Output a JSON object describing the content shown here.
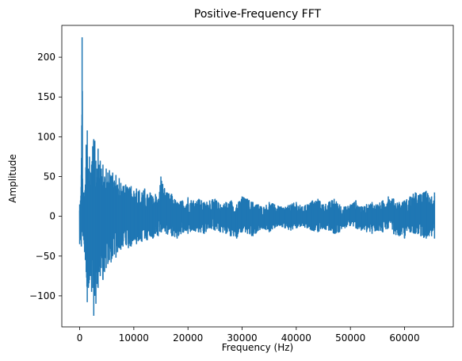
{
  "chart_data": {
    "type": "line",
    "title": "Positive-Frequency FFT",
    "xlabel": "Frequency (Hz)",
    "ylabel": "Amplitude",
    "xlim": [
      -3300,
      69000
    ],
    "ylim": [
      -139,
      240
    ],
    "x_ticks": [
      0,
      10000,
      20000,
      30000,
      40000,
      50000,
      60000
    ],
    "x_tick_labels": [
      "0",
      "10000",
      "20000",
      "30000",
      "40000",
      "50000",
      "60000"
    ],
    "y_ticks": [
      -100,
      -50,
      0,
      50,
      100,
      150,
      200
    ],
    "y_tick_labels": [
      "−100",
      "−50",
      "0",
      "50",
      "100",
      "150",
      "200"
    ],
    "grid": false,
    "legend": "none",
    "series": [
      {
        "color": "#1f77b4",
        "envelope": {
          "x": [
            0,
            150,
            300,
            450,
            600,
            750,
            900,
            1050,
            1200,
            1400,
            1600,
            1800,
            2000,
            2200,
            2400,
            2600,
            2800,
            3000,
            3200,
            3400,
            3600,
            3800,
            4000,
            4300,
            4600,
            4900,
            5200,
            5500,
            5800,
            6100,
            6400,
            6700,
            7000,
            7300,
            7600,
            8000,
            8500,
            9000,
            9500,
            10000,
            10500,
            11000,
            11500,
            12000,
            12500,
            13000,
            13500,
            14000,
            14500,
            15000,
            16000,
            17000,
            18000,
            19000,
            20000,
            21000,
            22000,
            23000,
            24000,
            25000,
            26000,
            27000,
            28000,
            29000,
            30000,
            31000,
            32000,
            33000,
            34000,
            35000,
            36000,
            37000,
            38000,
            39000,
            40000,
            41000,
            42000,
            43000,
            44000,
            45000,
            46000,
            47000,
            48000,
            49000,
            50000,
            51000,
            52000,
            53000,
            54000,
            55000,
            56000,
            57000,
            58000,
            59000,
            60000,
            61000,
            62000,
            63000,
            64000,
            65000,
            65536
          ],
          "max": [
            15,
            20,
            52,
            225,
            20,
            30,
            25,
            40,
            90,
            108,
            60,
            75,
            55,
            65,
            88,
            97,
            95,
            70,
            60,
            85,
            65,
            70,
            60,
            65,
            50,
            60,
            55,
            58,
            50,
            55,
            45,
            52,
            40,
            48,
            42,
            38,
            40,
            35,
            38,
            32,
            35,
            33,
            30,
            35,
            28,
            30,
            25,
            28,
            22,
            50,
            30,
            28,
            18,
            20,
            24,
            20,
            22,
            18,
            20,
            22,
            15,
            18,
            20,
            15,
            25,
            22,
            18,
            15,
            12,
            18,
            15,
            12,
            12,
            15,
            18,
            12,
            15,
            20,
            22,
            15,
            18,
            22,
            15,
            12,
            15,
            20,
            12,
            15,
            18,
            15,
            20,
            25,
            22,
            18,
            20,
            25,
            30,
            28,
            32,
            25,
            30
          ],
          "min": [
            -35,
            -30,
            -38,
            -20,
            -25,
            -30,
            -45,
            -55,
            -70,
            -108,
            -90,
            -80,
            -75,
            -95,
            -90,
            -125,
            -100,
            -110,
            -85,
            -90,
            -70,
            -75,
            -65,
            -80,
            -70,
            -65,
            -60,
            -55,
            -58,
            -50,
            -48,
            -52,
            -45,
            -40,
            -42,
            -38,
            -35,
            -40,
            -38,
            -30,
            -35,
            -30,
            -32,
            -28,
            -30,
            -25,
            -28,
            -22,
            -25,
            -20,
            -22,
            -25,
            -28,
            -20,
            -22,
            -18,
            -20,
            -22,
            -15,
            -18,
            -20,
            -22,
            -25,
            -28,
            -20,
            -22,
            -25,
            -18,
            -15,
            -20,
            -15,
            -12,
            -15,
            -18,
            -15,
            -12,
            -15,
            -18,
            -20,
            -15,
            -18,
            -22,
            -20,
            -15,
            -12,
            -15,
            -18,
            -20,
            -22,
            -18,
            -20,
            -15,
            -22,
            -25,
            -28,
            -20,
            -22,
            -25,
            -28,
            -25,
            -28
          ]
        }
      }
    ]
  }
}
